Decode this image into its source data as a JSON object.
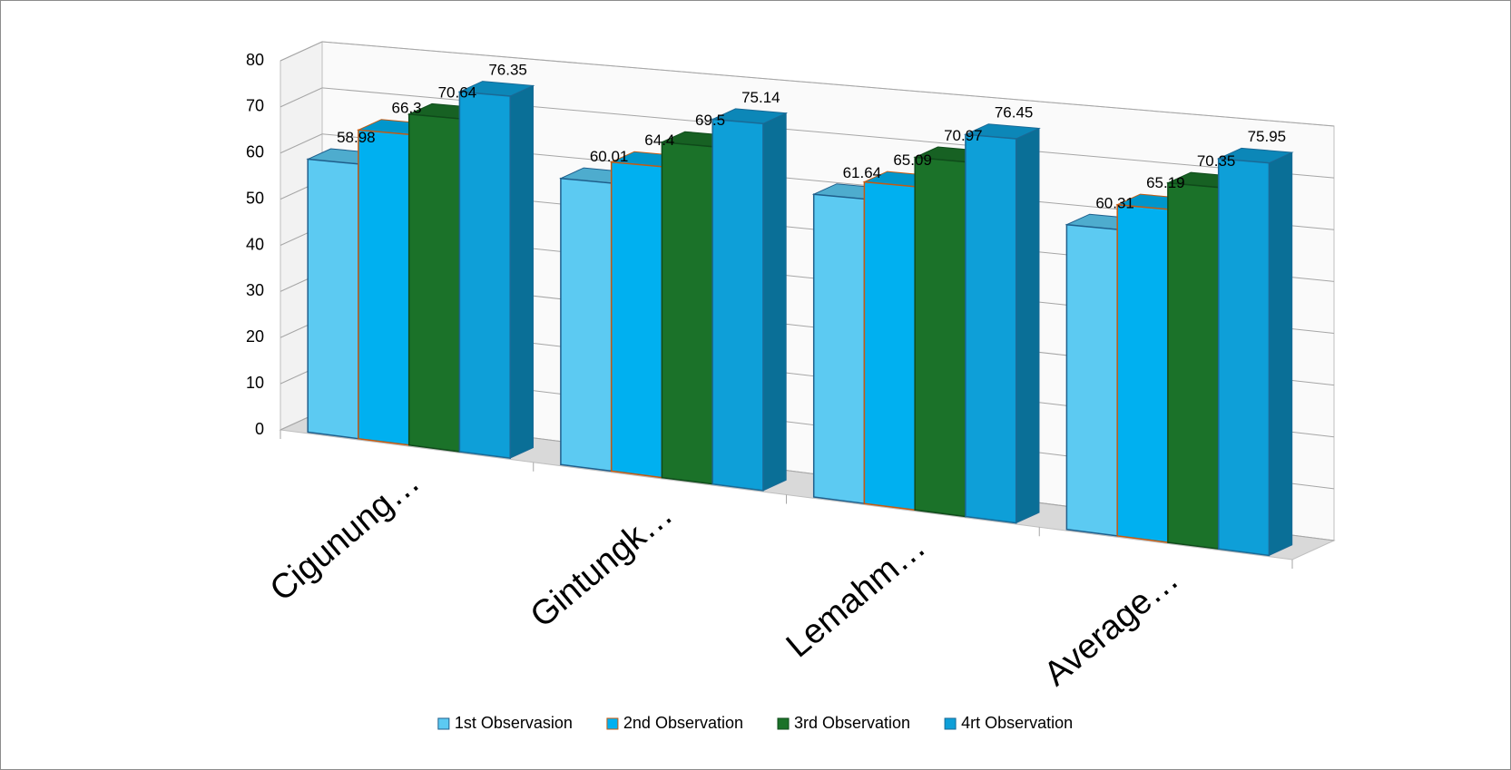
{
  "chart_data": {
    "type": "bar3d",
    "categories": [
      "Cigunung…",
      "Gintungk…",
      "Lemahm…",
      "Average…"
    ],
    "series": [
      {
        "name": "1st Observasion",
        "color": "#5ccaf2",
        "edge": "#1f5f8c",
        "values": [
          58.98,
          60.01,
          61.64,
          60.31
        ]
      },
      {
        "name": "2nd Observation",
        "color": "#00b0f0",
        "edge": "#c55a11",
        "values": [
          66.3,
          64.4,
          65.09,
          65.19
        ]
      },
      {
        "name": "3rd Observation",
        "color": "#1b7229",
        "edge": "#0f4a1a",
        "values": [
          70.64,
          69.5,
          70.97,
          70.35
        ]
      },
      {
        "name": "4rt Observation",
        "color": "#0e9fd8",
        "edge": "#1a6a96",
        "values": [
          76.35,
          75.14,
          76.45,
          75.95
        ]
      }
    ],
    "ylim": [
      0,
      80
    ],
    "yticks": [
      0,
      10,
      20,
      30,
      40,
      50,
      60,
      70,
      80
    ],
    "grid": true,
    "legend": "bottom"
  }
}
